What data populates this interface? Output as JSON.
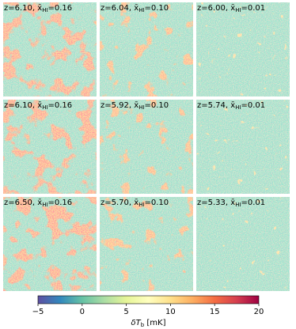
{
  "chart_data": {
    "type": "image-grid",
    "panels": [
      {
        "label": [
          "z=6.10, ",
          "x̄",
          "HI",
          "=0.16"
        ]
      },
      {
        "label": [
          "z=6.04, ",
          "x̄",
          "HI",
          "=0.10"
        ]
      },
      {
        "label": [
          "z=6.00, ",
          "x̄",
          "HI",
          "=0.01"
        ]
      },
      {
        "label": [
          "z=6.10, ",
          "x̄",
          "HI",
          "=0.16"
        ]
      },
      {
        "label": [
          "z=5.92, ",
          "x̄",
          "HI",
          "=0.10"
        ]
      },
      {
        "label": [
          "z=5.74, ",
          "x̄",
          "HI",
          "=0.01"
        ]
      },
      {
        "label": [
          "z=6.50, ",
          "x̄",
          "HI",
          "=0.16"
        ]
      },
      {
        "label": [
          "z=5.70, ",
          "x̄",
          "HI",
          "=0.10"
        ]
      },
      {
        "label": [
          "z=5.33, ",
          "x̄",
          "HI",
          "=0.01"
        ]
      }
    ],
    "colorbar": {
      "label": [
        "δT",
        "b",
        " [mK]"
      ],
      "lim": [
        -5,
        20
      ],
      "ticks": [
        {
          "value": -5,
          "label": "−5"
        },
        0,
        5,
        10,
        15,
        20
      ],
      "colormap": [
        "#5e4fa2",
        "#3288bd",
        "#66c2a5",
        "#abdda4",
        "#e6f598",
        "#ffffbf",
        "#fee08b",
        "#fdae61",
        "#f46d43",
        "#d53e4f",
        "#9e0142"
      ]
    }
  }
}
